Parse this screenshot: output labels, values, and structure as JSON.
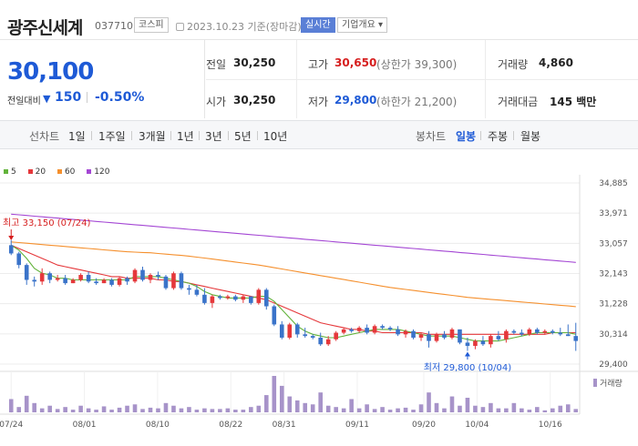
{
  "header": {
    "name": "광주신세계",
    "code": "037710",
    "market": "코스피",
    "date": "2023.10.23  기준(장마감)",
    "realtime": "실시간",
    "company": "기업개요"
  },
  "price": {
    "current": "30,100",
    "change_label": "전일대비",
    "change_arrow": "▼",
    "change": "150",
    "change_pct": "-0.50%"
  },
  "stats": {
    "prev_label": "전일",
    "prev": "30,250",
    "high_label": "고가",
    "high": "30,650",
    "high_limit": "(상한가 39,300)",
    "volume_label": "거래량",
    "volume": "4,860",
    "open_label": "시가",
    "open": "30,250",
    "low_label": "저가",
    "low": "29,800",
    "low_limit": "(하한가 21,200)",
    "amount_label": "거래대금",
    "amount": "145 백만"
  },
  "toolbar": {
    "line_label": "선차트",
    "ranges": [
      "1일",
      "1주일",
      "3개월",
      "1년",
      "3년",
      "5년",
      "10년"
    ],
    "candle_label": "봉차트",
    "candles": [
      "일봉",
      "주봉",
      "월봉"
    ],
    "active_candle": "일봉"
  },
  "legend": [
    {
      "label": "5",
      "color": "#62b33b"
    },
    {
      "label": "20",
      "color": "#e5383b"
    },
    {
      "label": "60",
      "color": "#f5902e"
    },
    {
      "label": "120",
      "color": "#a447d4"
    }
  ],
  "chart_data": {
    "type": "candlestick",
    "y_ticks": [
      "34,885",
      "33,971",
      "33,057",
      "32,143",
      "31,228",
      "30,314",
      "29,400"
    ],
    "ylim": [
      29400,
      34885
    ],
    "x_labels": [
      "07/24",
      "08/01",
      "08/10",
      "08/22",
      "08/31",
      "09/11",
      "09/20",
      "10/04",
      "10/16"
    ],
    "high_annotation": "최고 33,150 (07/24)",
    "low_annotation": "최저 29,800 (10/04)",
    "volume_label": "거래량",
    "up_color": "#e5383b",
    "down_color": "#3a73c9",
    "candles": [
      [
        33000,
        33150,
        32700,
        32750
      ],
      [
        32750,
        32800,
        32300,
        32400
      ],
      [
        32400,
        32450,
        31800,
        31950
      ],
      [
        31950,
        32050,
        31750,
        31900
      ],
      [
        31900,
        32300,
        31800,
        32150
      ],
      [
        32150,
        32200,
        31850,
        31950
      ],
      [
        31950,
        32100,
        31900,
        32000
      ],
      [
        32000,
        32100,
        31800,
        31850
      ],
      [
        31850,
        32000,
        31850,
        31950
      ],
      [
        31950,
        32150,
        31900,
        32100
      ],
      [
        32100,
        32200,
        31850,
        31900
      ],
      [
        31900,
        32000,
        31800,
        31850
      ],
      [
        31850,
        32000,
        31850,
        31950
      ],
      [
        31950,
        32000,
        31750,
        31800
      ],
      [
        31800,
        32050,
        31750,
        32000
      ],
      [
        32000,
        32050,
        31800,
        31900
      ],
      [
        31900,
        32300,
        31850,
        32250
      ],
      [
        32250,
        32350,
        31900,
        31950
      ],
      [
        31950,
        32150,
        31850,
        32100
      ],
      [
        32100,
        32200,
        31950,
        32050
      ],
      [
        32050,
        32100,
        31650,
        31700
      ],
      [
        31700,
        32200,
        31650,
        32150
      ],
      [
        32150,
        32200,
        31650,
        31700
      ],
      [
        31700,
        31800,
        31500,
        31650
      ],
      [
        31650,
        31800,
        31450,
        31500
      ],
      [
        31500,
        31700,
        31200,
        31250
      ],
      [
        31250,
        31500,
        31100,
        31450
      ],
      [
        31450,
        31500,
        31350,
        31400
      ],
      [
        31400,
        31500,
        31350,
        31450
      ],
      [
        31450,
        31500,
        31300,
        31350
      ],
      [
        31350,
        31500,
        31250,
        31450
      ],
      [
        31450,
        31450,
        31200,
        31250
      ],
      [
        31250,
        31700,
        31200,
        31650
      ],
      [
        31650,
        31700,
        31050,
        31150
      ],
      [
        31150,
        31200,
        30550,
        30600
      ],
      [
        30600,
        30700,
        30150,
        30200
      ],
      [
        30200,
        30650,
        30150,
        30600
      ],
      [
        30600,
        30650,
        30200,
        30300
      ],
      [
        30300,
        30500,
        30200,
        30250
      ],
      [
        30250,
        30300,
        30150,
        30200
      ],
      [
        30200,
        30350,
        29950,
        30000
      ],
      [
        30000,
        30250,
        29950,
        30150
      ],
      [
        30150,
        30400,
        30100,
        30350
      ],
      [
        30350,
        30500,
        30300,
        30450
      ],
      [
        30450,
        30500,
        30350,
        30400
      ],
      [
        30400,
        30550,
        30350,
        30500
      ],
      [
        30500,
        30600,
        30300,
        30350
      ],
      [
        30350,
        30600,
        30300,
        30550
      ],
      [
        30550,
        30600,
        30450,
        30500
      ],
      [
        30500,
        30550,
        30400,
        30450
      ],
      [
        30450,
        30550,
        30250,
        30300
      ],
      [
        30300,
        30450,
        30200,
        30400
      ],
      [
        30400,
        30450,
        30150,
        30200
      ],
      [
        30200,
        30350,
        30100,
        30300
      ],
      [
        30300,
        30400,
        29900,
        30100
      ],
      [
        30100,
        30350,
        30050,
        30300
      ],
      [
        30300,
        30400,
        30150,
        30200
      ],
      [
        30200,
        30500,
        30150,
        30450
      ],
      [
        30450,
        30450,
        30000,
        30050
      ],
      [
        30050,
        30200,
        29800,
        29950
      ],
      [
        29950,
        30150,
        29850,
        30100
      ],
      [
        30100,
        30250,
        29950,
        30000
      ],
      [
        30000,
        30300,
        29900,
        30250
      ],
      [
        30250,
        30400,
        30100,
        30150
      ],
      [
        30150,
        30450,
        30050,
        30400
      ],
      [
        30400,
        30450,
        30300,
        30350
      ],
      [
        30350,
        30450,
        30250,
        30300
      ],
      [
        30300,
        30500,
        30250,
        30450
      ],
      [
        30450,
        30500,
        30300,
        30350
      ],
      [
        30350,
        30450,
        30300,
        30400
      ],
      [
        30400,
        30450,
        30300,
        30350
      ],
      [
        30350,
        30500,
        30250,
        30300
      ],
      [
        30300,
        30600,
        30250,
        30250
      ],
      [
        30250,
        30650,
        29800,
        30100
      ]
    ],
    "ma5": [
      33000,
      32850,
      32600,
      32300,
      32150,
      32100,
      32000,
      32000,
      31950,
      31950,
      31950,
      31950,
      31950,
      31950,
      31950,
      31950,
      32050,
      32050,
      32050,
      32050,
      32000,
      31950,
      31900,
      31850,
      31750,
      31600,
      31500,
      31450,
      31400,
      31400,
      31400,
      31400,
      31450,
      31450,
      31300,
      31050,
      30800,
      30550,
      30400,
      30300,
      30250,
      30200,
      30200,
      30250,
      30300,
      30350,
      30400,
      30450,
      30450,
      30450,
      30450,
      30400,
      30350,
      30300,
      30250,
      30250,
      30250,
      30250,
      30200,
      30150,
      30100,
      30100,
      30100,
      30100,
      30150,
      30200,
      30250,
      30300,
      30350,
      30350,
      30350,
      30350,
      30350,
      30300
    ],
    "ma20": [
      33000,
      32900,
      32800,
      32700,
      32600,
      32500,
      32400,
      32350,
      32300,
      32250,
      32200,
      32150,
      32100,
      32050,
      32050,
      32000,
      32000,
      32000,
      32000,
      31950,
      31950,
      31900,
      31900,
      31850,
      31800,
      31750,
      31700,
      31650,
      31600,
      31550,
      31500,
      31450,
      31400,
      31350,
      31250,
      31150,
      31050,
      30950,
      30850,
      30750,
      30650,
      30600,
      30550,
      30500,
      30450,
      30450,
      30400,
      30400,
      30350,
      30350,
      30350,
      30350,
      30350,
      30350,
      30300,
      30300,
      30300,
      30300,
      30300,
      30300,
      30300,
      30300,
      30300,
      30300,
      30300,
      30300,
      30300,
      30300,
      30300,
      30300,
      30350,
      30350,
      30350,
      30350
    ],
    "ma60": [
      33100,
      33080,
      33060,
      33040,
      33020,
      33000,
      32980,
      32960,
      32940,
      32920,
      32900,
      32880,
      32860,
      32840,
      32820,
      32800,
      32790,
      32780,
      32770,
      32750,
      32730,
      32710,
      32690,
      32670,
      32640,
      32610,
      32580,
      32550,
      32520,
      32490,
      32460,
      32430,
      32400,
      32360,
      32320,
      32280,
      32240,
      32200,
      32160,
      32120,
      32080,
      32040,
      32000,
      31960,
      31920,
      31880,
      31840,
      31800,
      31760,
      31720,
      31690,
      31660,
      31630,
      31600,
      31570,
      31540,
      31510,
      31480,
      31450,
      31420,
      31400,
      31380,
      31360,
      31340,
      31320,
      31300,
      31280,
      31260,
      31240,
      31220,
      31200,
      31180,
      31160,
      31140
    ],
    "ma120": [
      33940,
      33920,
      33900,
      33880,
      33860,
      33840,
      33820,
      33800,
      33780,
      33760,
      33740,
      33720,
      33700,
      33680,
      33660,
      33640,
      33620,
      33600,
      33580,
      33560,
      33540,
      33520,
      33500,
      33480,
      33460,
      33440,
      33420,
      33400,
      33380,
      33360,
      33340,
      33320,
      33300,
      33280,
      33260,
      33240,
      33220,
      33200,
      33180,
      33160,
      33140,
      33120,
      33100,
      33080,
      33060,
      33040,
      33020,
      33000,
      32980,
      32960,
      32940,
      32920,
      32900,
      32880,
      32860,
      32840,
      32820,
      32800,
      32780,
      32760,
      32740,
      32720,
      32700,
      32680,
      32660,
      32640,
      32620,
      32600,
      32580,
      32560,
      32540,
      32520,
      32500,
      32480
    ],
    "volume": [
      20,
      8,
      25,
      14,
      6,
      10,
      5,
      8,
      4,
      10,
      6,
      4,
      9,
      4,
      7,
      10,
      12,
      5,
      7,
      6,
      14,
      10,
      6,
      8,
      4,
      6,
      5,
      5,
      6,
      4,
      4,
      8,
      10,
      26,
      55,
      40,
      24,
      18,
      14,
      12,
      30,
      10,
      8,
      6,
      20,
      6,
      12,
      5,
      8,
      4,
      6,
      7,
      4,
      12,
      30,
      14,
      6,
      24,
      10,
      22,
      10,
      8,
      14,
      6,
      6,
      14,
      6,
      4,
      8,
      3,
      6,
      10,
      12,
      5
    ]
  }
}
